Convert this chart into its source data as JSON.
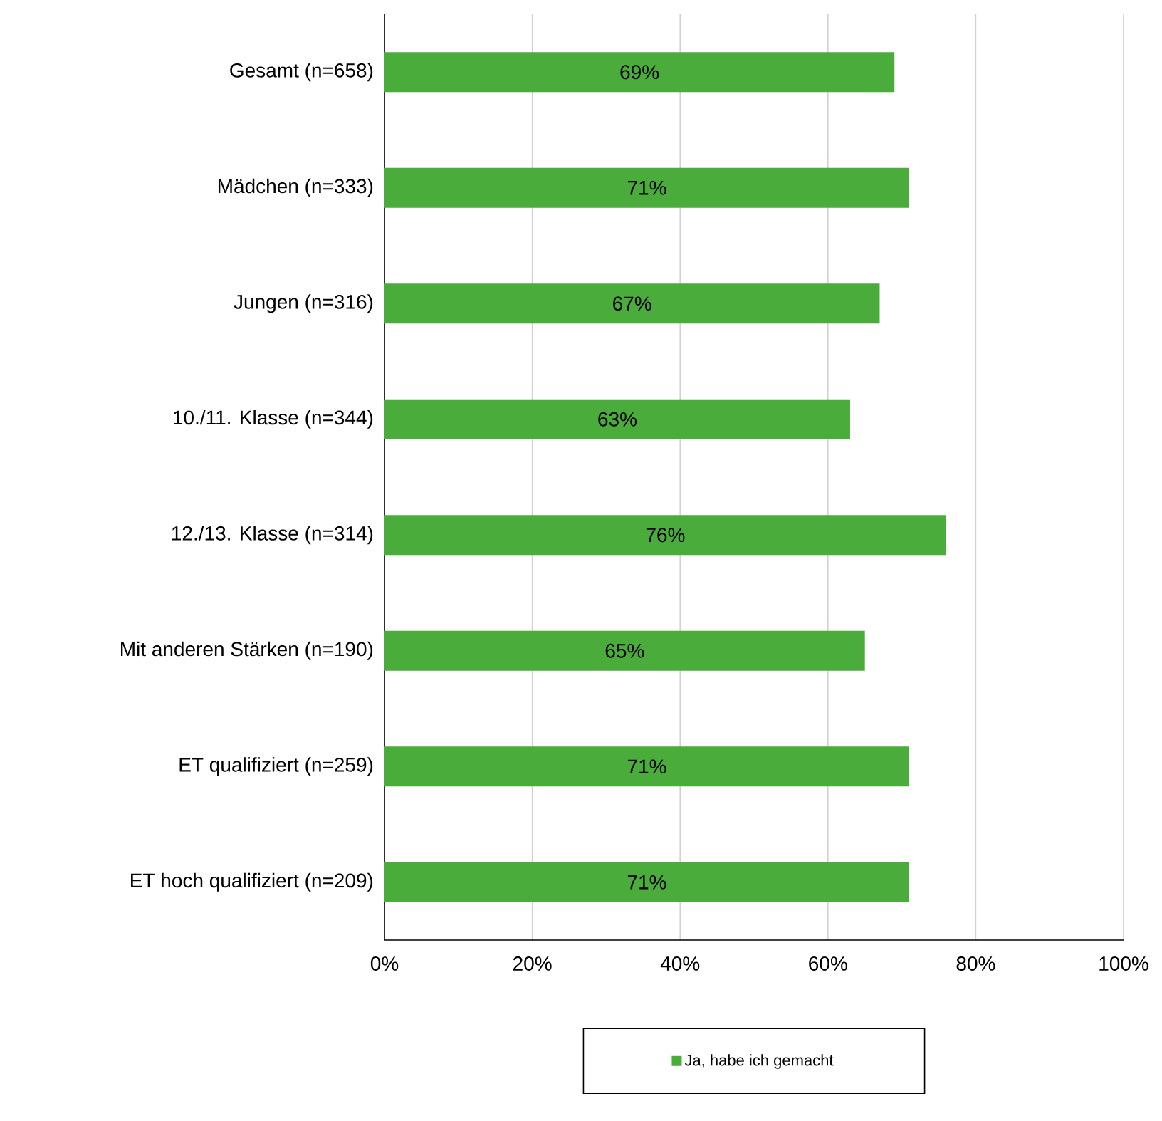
{
  "chart_data": {
    "type": "bar",
    "orientation": "horizontal",
    "categories": [
      "Gesamt (n=658)",
      "Mädchen (n=333)",
      "Jungen (n=316)",
      "10./11. Klasse (n=344)",
      "12./13. Klasse (n=314)",
      "Mit anderen Stärken (n=190)",
      "ET qualifiziert (n=259)",
      "ET hoch qualifiziert (n=209)"
    ],
    "series": [
      {
        "name": "Ja, habe ich gemacht",
        "color": "#4aac3b",
        "values": [
          69,
          71,
          67,
          63,
          76,
          65,
          71,
          71
        ],
        "value_labels": [
          "69%",
          "71%",
          "67%",
          "63%",
          "76%",
          "65%",
          "71%",
          "71%"
        ]
      }
    ],
    "xlim": [
      0,
      100
    ],
    "xticks": [
      {
        "value": 0,
        "label": "0%"
      },
      {
        "value": 20,
        "label": "20%"
      },
      {
        "value": 40,
        "label": "40%"
      },
      {
        "value": 60,
        "label": "60%"
      },
      {
        "value": 80,
        "label": "80%"
      },
      {
        "value": 100,
        "label": "100%"
      }
    ],
    "grid": "x",
    "legend": "bottom"
  }
}
